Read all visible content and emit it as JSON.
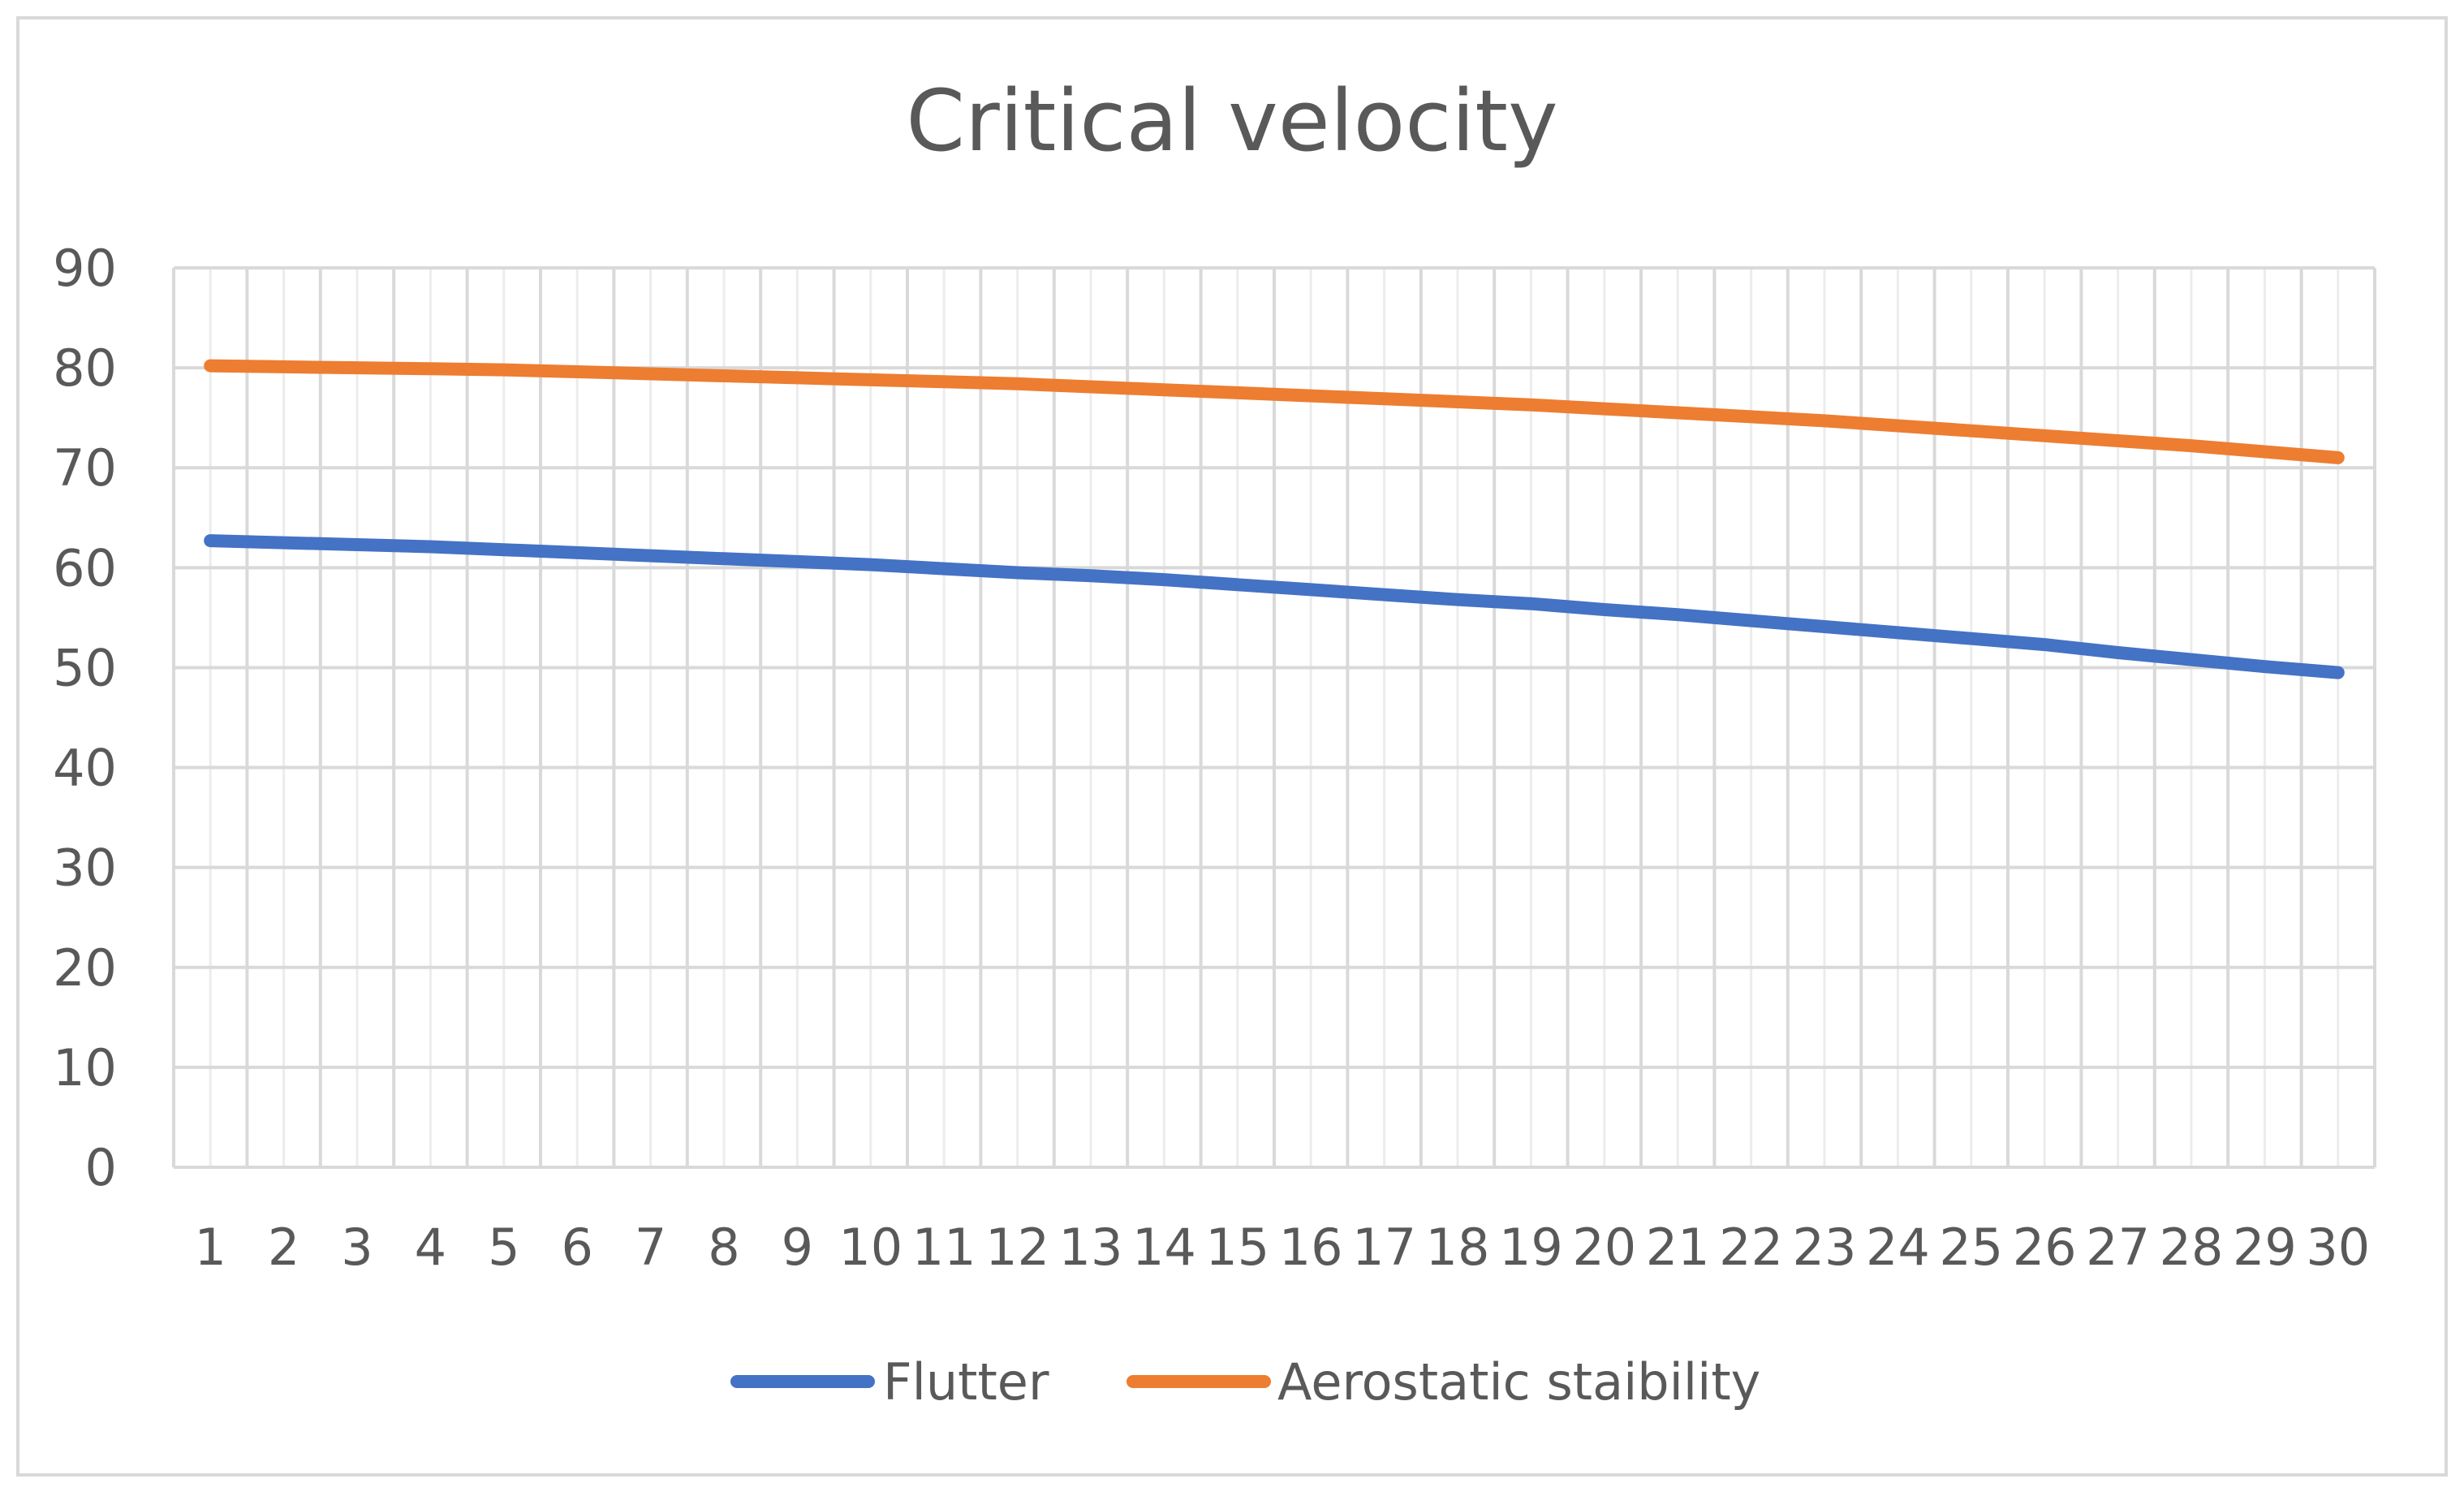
{
  "chart_data": {
    "type": "line",
    "title": "Critical velocity",
    "xlabel": "",
    "ylabel": "",
    "categories": [
      "1",
      "2",
      "3",
      "4",
      "5",
      "6",
      "7",
      "8",
      "9",
      "10",
      "11",
      "12",
      "13",
      "14",
      "15",
      "16",
      "17",
      "18",
      "19",
      "20",
      "21",
      "22",
      "23",
      "24",
      "25",
      "26",
      "27",
      "28",
      "29",
      "30"
    ],
    "ylim": [
      0,
      90
    ],
    "yticks": [
      "0",
      "10",
      "20",
      "30",
      "40",
      "50",
      "60",
      "70",
      "80",
      "90"
    ],
    "grid": true,
    "legend_position": "bottom",
    "series": [
      {
        "name": "Flutter",
        "color": "#4472C4",
        "values": [
          62.7,
          62.5,
          62.3,
          62.1,
          61.8,
          61.5,
          61.2,
          60.9,
          60.6,
          60.3,
          59.9,
          59.5,
          59.2,
          58.8,
          58.3,
          57.8,
          57.3,
          56.8,
          56.4,
          55.8,
          55.3,
          54.7,
          54.1,
          53.5,
          52.9,
          52.3,
          51.5,
          50.8,
          50.1,
          49.5
        ]
      },
      {
        "name": "Aerostatic staibility",
        "color": "#ED7D31",
        "values": [
          80.2,
          80.1,
          80.0,
          79.9,
          79.8,
          79.6,
          79.4,
          79.2,
          79.0,
          78.8,
          78.6,
          78.4,
          78.1,
          77.8,
          77.5,
          77.2,
          76.9,
          76.6,
          76.3,
          75.9,
          75.5,
          75.1,
          74.7,
          74.2,
          73.7,
          73.2,
          72.7,
          72.2,
          71.6,
          71.0
        ]
      }
    ]
  }
}
